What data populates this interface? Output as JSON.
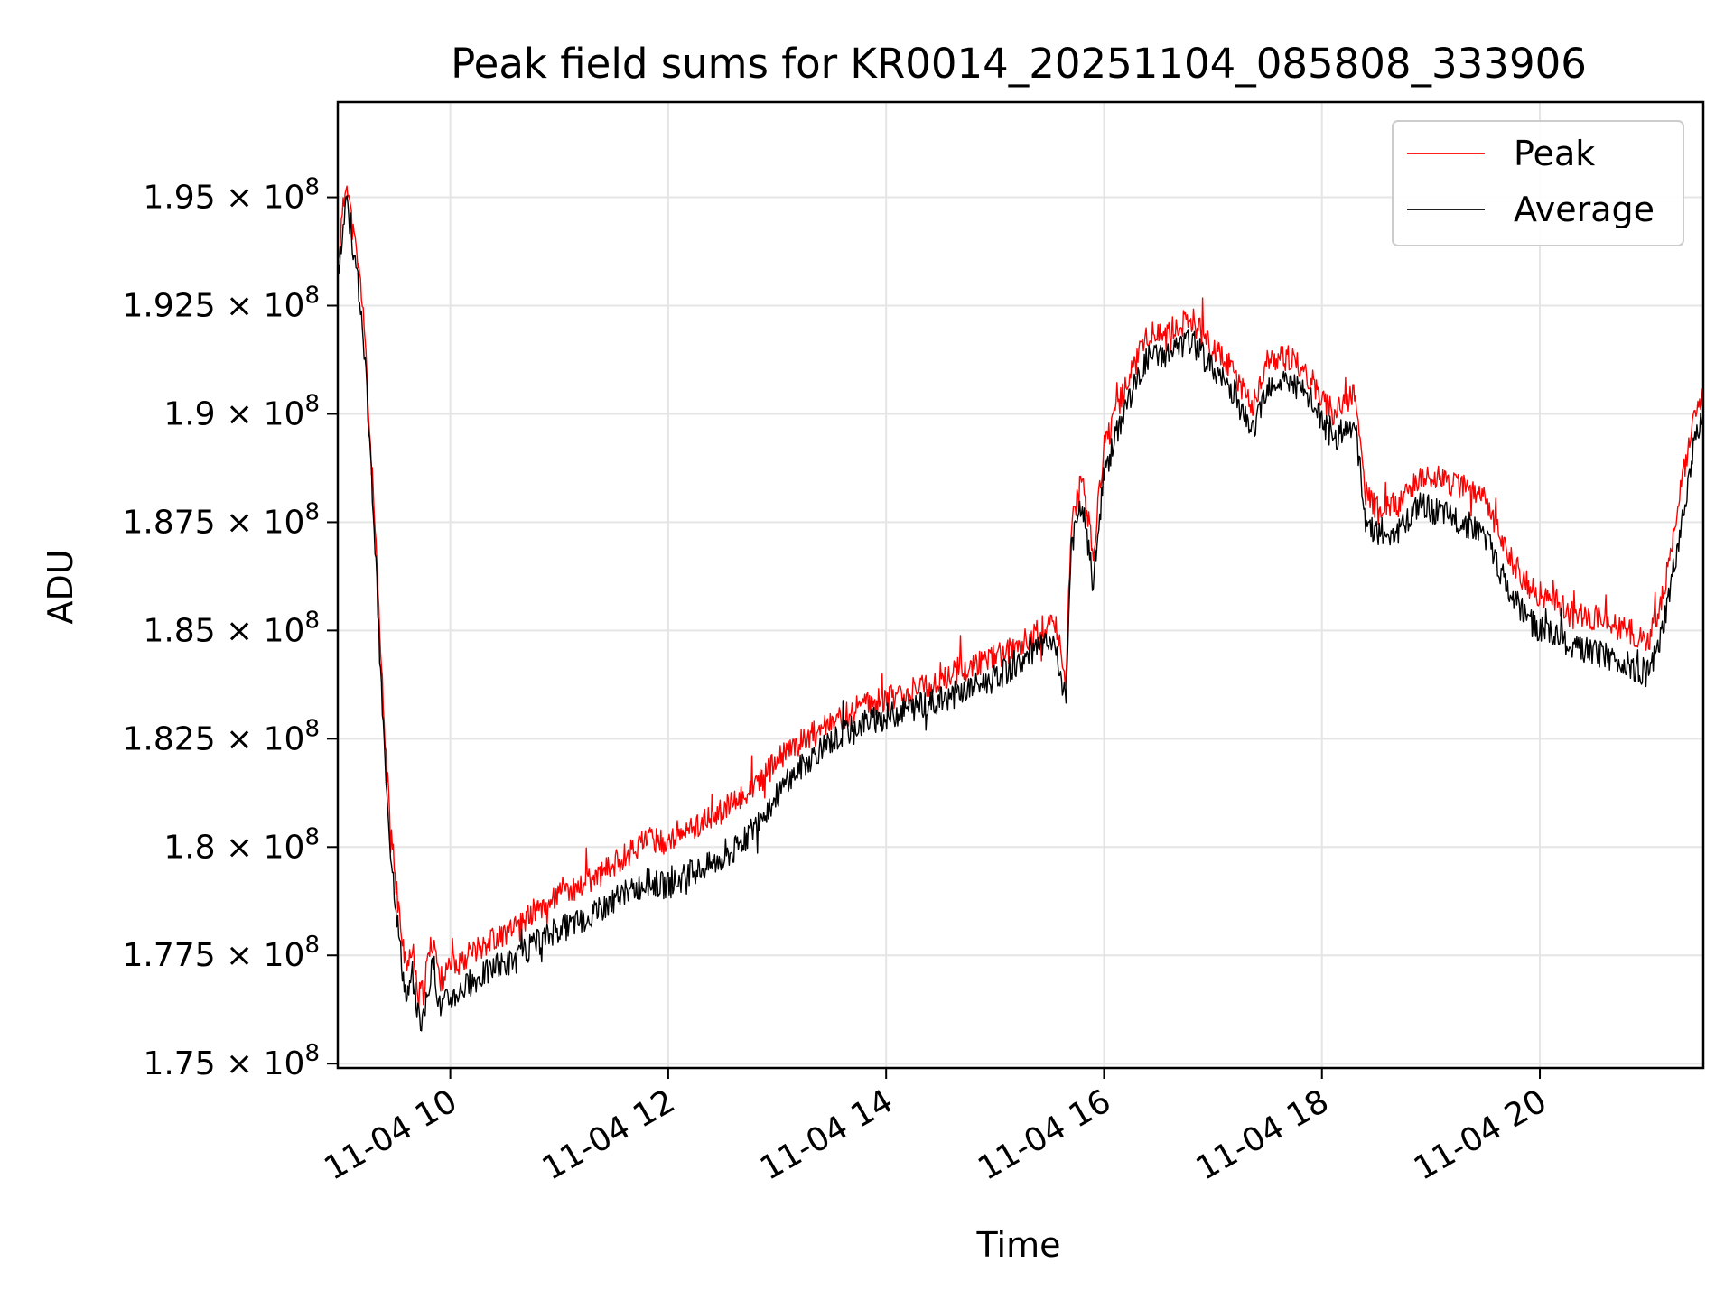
{
  "chart_data": {
    "type": "line",
    "title": "Peak field sums for KR0014_20251104_085808_333906",
    "xlabel": "Time",
    "ylabel": "ADU",
    "xlim_hours": [
      8.967,
      21.5
    ],
    "ylim": [
      174900000,
      197200000
    ],
    "grid": true,
    "legend_position": "top-right",
    "x_ticks": [
      {
        "value": 10,
        "label": "11-04 10"
      },
      {
        "value": 12,
        "label": "11-04 12"
      },
      {
        "value": 14,
        "label": "11-04 14"
      },
      {
        "value": 16,
        "label": "11-04 16"
      },
      {
        "value": 18,
        "label": "11-04 18"
      },
      {
        "value": 20,
        "label": "11-04 20"
      }
    ],
    "y_ticks": [
      {
        "value": 175000000,
        "mantissa": "1.75"
      },
      {
        "value": 177500000,
        "mantissa": "1.775"
      },
      {
        "value": 180000000,
        "mantissa": "1.8"
      },
      {
        "value": 182500000,
        "mantissa": "1.825"
      },
      {
        "value": 185000000,
        "mantissa": "1.85"
      },
      {
        "value": 187500000,
        "mantissa": "1.875"
      },
      {
        "value": 190000000,
        "mantissa": "1.9"
      },
      {
        "value": 192500000,
        "mantissa": "1.925"
      },
      {
        "value": 195000000,
        "mantissa": "1.95"
      }
    ],
    "y_tick_suffix": "× 10",
    "y_tick_exponent": "8",
    "series": [
      {
        "name": "Peak",
        "color": "#ff0000",
        "x": [
          8.97,
          9.05,
          9.1,
          9.15,
          9.2,
          9.25,
          9.3,
          9.35,
          9.4,
          9.45,
          9.5,
          9.55,
          9.6,
          9.65,
          9.7,
          9.75,
          9.8,
          9.85,
          9.9,
          10.0,
          10.2,
          10.4,
          10.6,
          10.8,
          11.0,
          11.2,
          11.4,
          11.6,
          11.8,
          12.0,
          12.2,
          12.4,
          12.6,
          12.8,
          13.0,
          13.2,
          13.4,
          13.6,
          13.8,
          14.0,
          14.2,
          14.4,
          14.6,
          14.8,
          15.0,
          15.2,
          15.4,
          15.55,
          15.65,
          15.7,
          15.8,
          15.9,
          16.0,
          16.2,
          16.4,
          16.6,
          16.8,
          17.0,
          17.2,
          17.35,
          17.5,
          17.7,
          17.9,
          18.1,
          18.3,
          18.4,
          18.5,
          18.7,
          18.9,
          19.1,
          19.3,
          19.5,
          19.7,
          19.9,
          20.1,
          20.3,
          20.5,
          20.7,
          20.9,
          21.0,
          21.1,
          21.2,
          21.3,
          21.4,
          21.5
        ],
        "values": [
          193600000,
          195500000,
          194300000,
          193500000,
          192500000,
          190000000,
          187800000,
          185000000,
          182500000,
          180500000,
          179200000,
          178000000,
          177100000,
          177800000,
          176800000,
          176600000,
          177500000,
          177900000,
          176900000,
          177200000,
          177600000,
          177900000,
          178100000,
          178600000,
          178900000,
          179100000,
          179400000,
          179800000,
          180200000,
          180100000,
          180400000,
          180700000,
          181000000,
          181400000,
          182000000,
          182400000,
          182800000,
          183000000,
          183300000,
          183400000,
          183600000,
          183700000,
          184000000,
          184200000,
          184400000,
          184600000,
          185000000,
          185200000,
          183800000,
          187500000,
          188500000,
          186800000,
          189200000,
          190700000,
          191800000,
          191900000,
          192200000,
          191500000,
          191000000,
          190100000,
          191200000,
          191300000,
          190800000,
          190000000,
          190500000,
          188200000,
          187800000,
          187900000,
          188600000,
          188500000,
          188300000,
          188000000,
          186800000,
          186000000,
          185700000,
          185400000,
          185300000,
          185100000,
          184900000,
          184800000,
          185500000,
          186800000,
          188300000,
          189800000,
          190500000
        ]
      },
      {
        "name": "Average",
        "color": "#000000",
        "x": [
          8.97,
          9.05,
          9.1,
          9.15,
          9.2,
          9.25,
          9.3,
          9.35,
          9.4,
          9.45,
          9.5,
          9.55,
          9.6,
          9.65,
          9.7,
          9.75,
          9.8,
          9.85,
          9.9,
          10.0,
          10.2,
          10.4,
          10.6,
          10.8,
          11.0,
          11.2,
          11.4,
          11.6,
          11.8,
          12.0,
          12.2,
          12.4,
          12.6,
          12.8,
          13.0,
          13.2,
          13.4,
          13.6,
          13.8,
          14.0,
          14.2,
          14.4,
          14.6,
          14.8,
          15.0,
          15.2,
          15.4,
          15.55,
          15.65,
          15.7,
          15.8,
          15.9,
          16.0,
          16.2,
          16.4,
          16.6,
          16.8,
          17.0,
          17.2,
          17.35,
          17.5,
          17.7,
          17.9,
          18.1,
          18.3,
          18.4,
          18.5,
          18.7,
          18.9,
          19.1,
          19.3,
          19.5,
          19.7,
          19.9,
          20.1,
          20.3,
          20.5,
          20.7,
          20.9,
          21.0,
          21.1,
          21.2,
          21.3,
          21.4,
          21.5
        ],
        "values": [
          193200000,
          195000000,
          193900000,
          193000000,
          192000000,
          189700000,
          187500000,
          184500000,
          182000000,
          180000000,
          178700000,
          177400000,
          176400000,
          177100000,
          176200000,
          175900000,
          176800000,
          177300000,
          176300000,
          176500000,
          176900000,
          177200000,
          177400000,
          177800000,
          178100000,
          178300000,
          178600000,
          178900000,
          179200000,
          179100000,
          179400000,
          179600000,
          179900000,
          180500000,
          181200000,
          181800000,
          182300000,
          182600000,
          182900000,
          183000000,
          183200000,
          183300000,
          183500000,
          183700000,
          183900000,
          184200000,
          184600000,
          184700000,
          183400000,
          187000000,
          187900000,
          186100000,
          188600000,
          190200000,
          191300000,
          191400000,
          191700000,
          191000000,
          190500000,
          189500000,
          190700000,
          190800000,
          190300000,
          189400000,
          189800000,
          187600000,
          187200000,
          187300000,
          187900000,
          187700000,
          187500000,
          187200000,
          186000000,
          185200000,
          184900000,
          184600000,
          184500000,
          184300000,
          184100000,
          184000000,
          184700000,
          186000000,
          187500000,
          189100000,
          189900000
        ]
      }
    ]
  }
}
